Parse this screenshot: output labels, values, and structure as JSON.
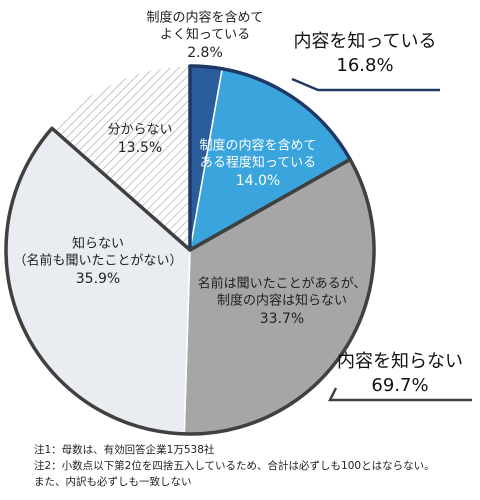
{
  "chart_data": {
    "type": "pie",
    "categories": [
      [
        "制度の内容を含めて",
        "よく知っている"
      ],
      [
        "制度の内容を含めて",
        "ある程度知っている"
      ],
      [
        "名前は聞いたことがあるが、",
        "制度の内容は知らない"
      ],
      [
        "知らない",
        "（名前も聞いたことがない）"
      ],
      [
        "分からない"
      ]
    ],
    "values": [
      2.8,
      14.0,
      33.7,
      35.9,
      13.5
    ],
    "value_labels": [
      "2.8%",
      "14.0%",
      "33.7%",
      "35.9%",
      "13.5%"
    ],
    "colors": [
      "#2a5d9c",
      "#3aa4dc",
      "#a6a6a6",
      "#e9ecf1",
      "#ffffff"
    ],
    "groups": [
      {
        "name": "内容を知っている",
        "value": 16.8,
        "value_label": "16.8%",
        "color": "#1f3864"
      },
      {
        "name": "内容を知らない",
        "value": 69.7,
        "value_label": "69.7%",
        "color": "#404040"
      }
    ],
    "notes": [
      "注1：母数は、有効回答企業1万538社",
      "注2：小数点以下第2位を四捨五入しているため、合計は必ずしも100とはならない。",
      "また、内訳も必ずしも一致しない"
    ]
  }
}
